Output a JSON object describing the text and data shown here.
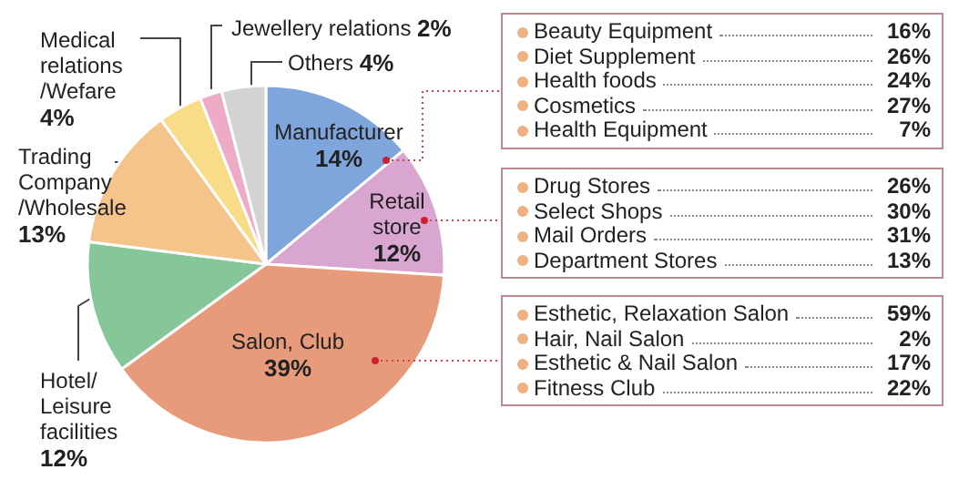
{
  "chart_data": [
    {
      "type": "pie",
      "categories": [
        "Manufacturer",
        "Retail\nstore",
        "Salon, Club",
        "Hotel/\nLeisure\nfacilities",
        "Trading\nCompany\n/Wholesale",
        "Medical\nrelations\n/Wefare",
        "Jewellery relations",
        "Others"
      ],
      "values": [
        14,
        12,
        39,
        12,
        13,
        4,
        2,
        4
      ],
      "value_labels": [
        "14%",
        "12%",
        "39%",
        "12%",
        "13%",
        "4%",
        "2%",
        "4%"
      ],
      "colors": [
        "#7fa6dc",
        "#d9a6d2",
        "#e89b7b",
        "#86c79a",
        "#f5c48a",
        "#f8dc88",
        "#eeaac6",
        "#d3d3d3"
      ]
    },
    {
      "type": "other",
      "categories": [
        "Beauty Equipment",
        "Diet Supplement",
        "Health foods",
        "Cosmetics",
        "Health Equipment"
      ],
      "value_labels": [
        "16%",
        "26%",
        "24%",
        "27%",
        "7%"
      ]
    },
    {
      "type": "other",
      "categories": [
        "Drug Stores",
        "Select Shops",
        "Mail Orders",
        "Department Stores"
      ],
      "value_labels": [
        "26%",
        "30%",
        "31%",
        "13%"
      ]
    },
    {
      "type": "other",
      "categories": [
        "Esthetic, Relaxation Salon",
        "Hair, Nail Salon",
        "Esthetic & Nail Salon",
        "Fitness Club"
      ],
      "value_labels": [
        "59%",
        "2%",
        "17%",
        "22%"
      ]
    }
  ]
}
